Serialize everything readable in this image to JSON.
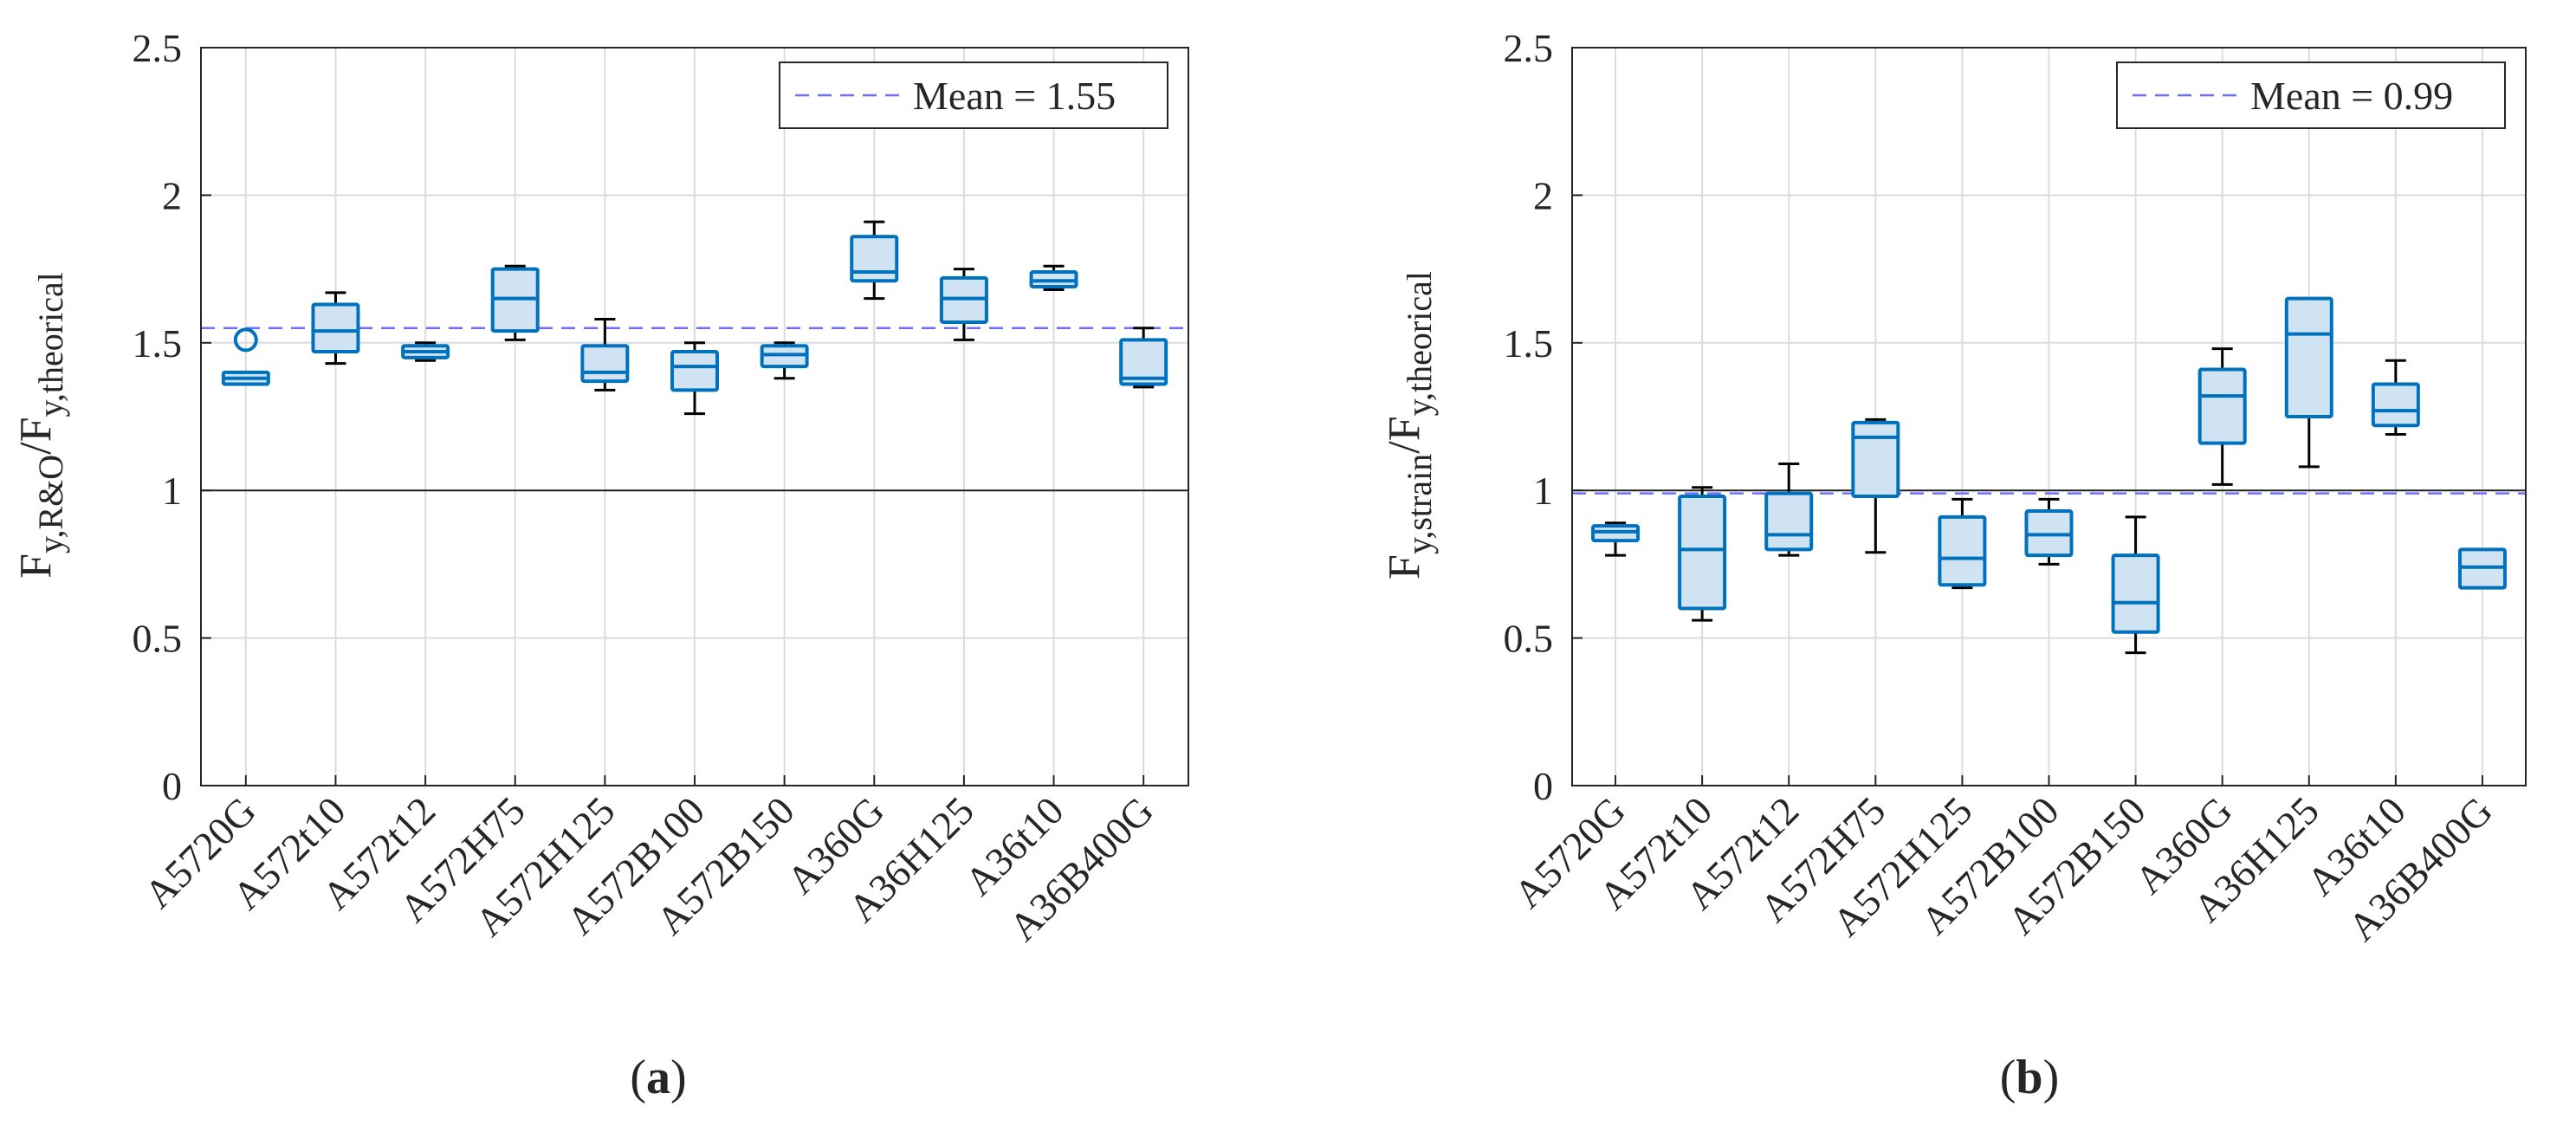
{
  "colors": {
    "box_edge": "#0072bd",
    "box_fill": "#cfe3f2",
    "whisker": "#000000",
    "mean_line": "#6d6dff",
    "grid": "#dcdcdc",
    "axis": "#262626"
  },
  "chart_data": [
    {
      "type": "box",
      "panel_label": "a",
      "ylabel": {
        "main": "F",
        "sub": "y,R&O",
        "slash": "/",
        "main2": "F",
        "sub2": "y,theorical"
      },
      "ylim": [
        0,
        2.5
      ],
      "yticks": [
        0,
        0.5,
        1,
        1.5,
        2,
        2.5
      ],
      "ytick_labels": [
        "0",
        "0.5",
        "1",
        "1.5",
        "2",
        "2.5"
      ],
      "reference_line": 1,
      "mean": 1.55,
      "legend": {
        "label": "Mean = 1.55",
        "location": "top-right"
      },
      "categories": [
        "A5720G",
        "A572t10",
        "A572t12",
        "A572H75",
        "A572H125",
        "A572B100",
        "A572B150",
        "A360G",
        "A36H125",
        "A36t10",
        "A36B400G"
      ],
      "boxes": [
        {
          "whisker_low": 1.36,
          "q1": 1.36,
          "median": 1.38,
          "q3": 1.4,
          "whisker_high": 1.4,
          "outliers": [
            1.51
          ]
        },
        {
          "whisker_low": 1.43,
          "q1": 1.47,
          "median": 1.54,
          "q3": 1.63,
          "whisker_high": 1.67,
          "outliers": []
        },
        {
          "whisker_low": 1.44,
          "q1": 1.45,
          "median": 1.47,
          "q3": 1.49,
          "whisker_high": 1.5,
          "outliers": []
        },
        {
          "whisker_low": 1.51,
          "q1": 1.54,
          "median": 1.65,
          "q3": 1.75,
          "whisker_high": 1.76,
          "outliers": []
        },
        {
          "whisker_low": 1.34,
          "q1": 1.37,
          "median": 1.4,
          "q3": 1.49,
          "whisker_high": 1.58,
          "outliers": []
        },
        {
          "whisker_low": 1.26,
          "q1": 1.34,
          "median": 1.42,
          "q3": 1.47,
          "whisker_high": 1.5,
          "outliers": []
        },
        {
          "whisker_low": 1.38,
          "q1": 1.42,
          "median": 1.46,
          "q3": 1.49,
          "whisker_high": 1.5,
          "outliers": []
        },
        {
          "whisker_low": 1.65,
          "q1": 1.71,
          "median": 1.74,
          "q3": 1.86,
          "whisker_high": 1.91,
          "outliers": []
        },
        {
          "whisker_low": 1.51,
          "q1": 1.57,
          "median": 1.65,
          "q3": 1.72,
          "whisker_high": 1.75,
          "outliers": []
        },
        {
          "whisker_low": 1.68,
          "q1": 1.69,
          "median": 1.71,
          "q3": 1.74,
          "whisker_high": 1.76,
          "outliers": []
        },
        {
          "whisker_low": 1.35,
          "q1": 1.36,
          "median": 1.38,
          "q3": 1.51,
          "whisker_high": 1.55,
          "outliers": []
        }
      ]
    },
    {
      "type": "box",
      "panel_label": "b",
      "ylabel": {
        "main": "F",
        "sub": "y,strain",
        "slash": "/",
        "main2": "F",
        "sub2": "y,theorical"
      },
      "ylim": [
        0,
        2.5
      ],
      "yticks": [
        0,
        0.5,
        1,
        1.5,
        2,
        2.5
      ],
      "ytick_labels": [
        "0",
        "0.5",
        "1",
        "1.5",
        "2",
        "2.5"
      ],
      "reference_line": 1,
      "mean": 0.99,
      "legend": {
        "label": "Mean = 0.99",
        "location": "top-right"
      },
      "categories": [
        "A5720G",
        "A572t10",
        "A572t12",
        "A572H75",
        "A572H125",
        "A572B100",
        "A572B150",
        "A360G",
        "A36H125",
        "A36t10",
        "A36B400G"
      ],
      "boxes": [
        {
          "whisker_low": 0.78,
          "q1": 0.83,
          "median": 0.86,
          "q3": 0.88,
          "whisker_high": 0.89,
          "outliers": []
        },
        {
          "whisker_low": 0.56,
          "q1": 0.6,
          "median": 0.8,
          "q3": 0.98,
          "whisker_high": 1.01,
          "outliers": []
        },
        {
          "whisker_low": 0.78,
          "q1": 0.8,
          "median": 0.85,
          "q3": 0.99,
          "whisker_high": 1.09,
          "outliers": []
        },
        {
          "whisker_low": 0.79,
          "q1": 0.98,
          "median": 1.18,
          "q3": 1.23,
          "whisker_high": 1.24,
          "outliers": []
        },
        {
          "whisker_low": 0.67,
          "q1": 0.68,
          "median": 0.77,
          "q3": 0.91,
          "whisker_high": 0.97,
          "outliers": []
        },
        {
          "whisker_low": 0.75,
          "q1": 0.78,
          "median": 0.85,
          "q3": 0.93,
          "whisker_high": 0.97,
          "outliers": []
        },
        {
          "whisker_low": 0.45,
          "q1": 0.52,
          "median": 0.62,
          "q3": 0.78,
          "whisker_high": 0.91,
          "outliers": []
        },
        {
          "whisker_low": 1.02,
          "q1": 1.16,
          "median": 1.32,
          "q3": 1.41,
          "whisker_high": 1.48,
          "outliers": []
        },
        {
          "whisker_low": 1.08,
          "q1": 1.25,
          "median": 1.53,
          "q3": 1.65,
          "whisker_high": 1.65,
          "outliers": []
        },
        {
          "whisker_low": 1.19,
          "q1": 1.22,
          "median": 1.27,
          "q3": 1.36,
          "whisker_high": 1.44,
          "outliers": []
        },
        {
          "whisker_low": 0.67,
          "q1": 0.67,
          "median": 0.74,
          "q3": 0.8,
          "whisker_high": 0.8,
          "outliers": []
        }
      ]
    }
  ]
}
